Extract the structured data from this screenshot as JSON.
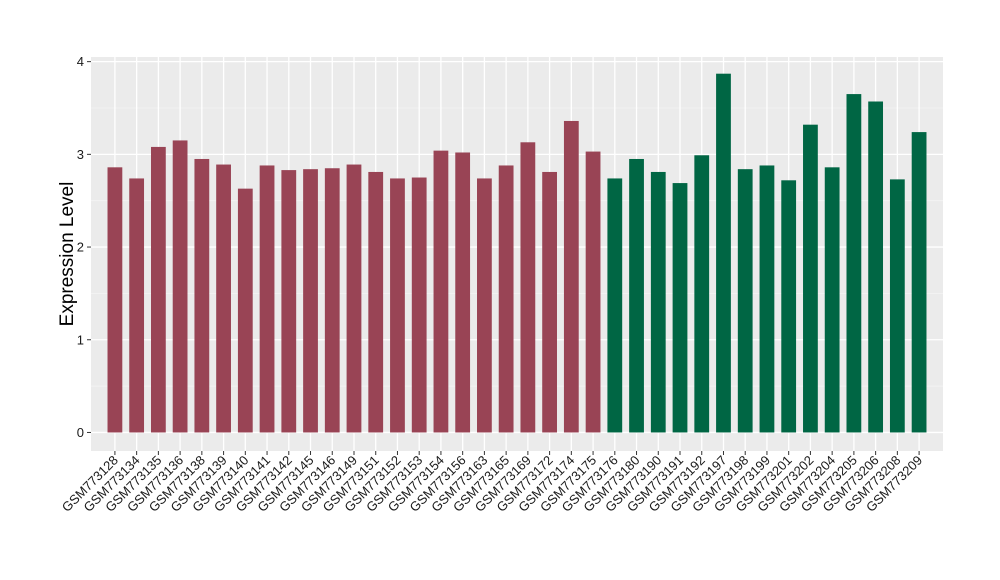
{
  "chart_data": {
    "type": "bar",
    "title": "",
    "xlabel": "",
    "ylabel": "Expression Level",
    "ylim": [
      -0.2,
      4.05
    ],
    "y_ticks": [
      0,
      1,
      2,
      3,
      4
    ],
    "grid": true,
    "background": "#EBEBEB",
    "categories": [
      "GSM773128",
      "GSM773134",
      "GSM773135",
      "GSM773136",
      "GSM773138",
      "GSM773139",
      "GSM773140",
      "GSM773141",
      "GSM773142",
      "GSM773145",
      "GSM773146",
      "GSM773149",
      "GSM773151",
      "GSM773152",
      "GSM773153",
      "GSM773154",
      "GSM773156",
      "GSM773163",
      "GSM773165",
      "GSM773169",
      "GSM773172",
      "GSM773174",
      "GSM773175",
      "GSM773176",
      "GSM773180",
      "GSM773190",
      "GSM773191",
      "GSM773192",
      "GSM773197",
      "GSM773198",
      "GSM773199",
      "GSM773201",
      "GSM773202",
      "GSM773204",
      "GSM773205",
      "GSM773206",
      "GSM773208",
      "GSM773209"
    ],
    "values": [
      2.86,
      2.74,
      3.08,
      3.15,
      2.95,
      2.89,
      2.63,
      2.88,
      2.83,
      2.84,
      2.85,
      2.89,
      2.81,
      2.74,
      2.75,
      3.04,
      3.02,
      2.74,
      2.88,
      3.13,
      2.81,
      3.36,
      3.03,
      2.74,
      2.95,
      2.81,
      2.69,
      2.99,
      3.87,
      2.84,
      2.88,
      2.72,
      3.32,
      2.86,
      3.65,
      3.57,
      2.73,
      3.24
    ],
    "group_sizes": [
      23,
      15
    ],
    "colors": [
      "#994455",
      "#006644"
    ]
  }
}
